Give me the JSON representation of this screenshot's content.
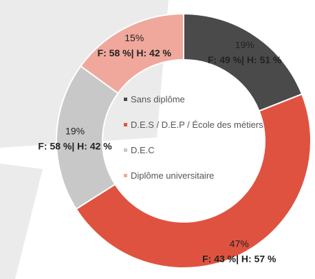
{
  "chart_data": {
    "type": "donut",
    "categories": [
      "Sans diplôme",
      "D.E.S / D.E.P / École des métiers",
      "D.E.C",
      "Diplôme universitaire"
    ],
    "values": [
      19,
      47,
      19,
      15
    ],
    "value_labels": [
      "19%",
      "47%",
      "19%",
      "15%"
    ],
    "annotations": [
      "F: 49 %| H: 51 %",
      "F: 43 %| H: 57 %",
      "F: 58 %| H: 42 %",
      "F: 58 %| H: 42 %"
    ],
    "colors": [
      "#4a4a4a",
      "#e05240",
      "#c8c8c8",
      "#f0a89c"
    ],
    "legend": "center"
  }
}
